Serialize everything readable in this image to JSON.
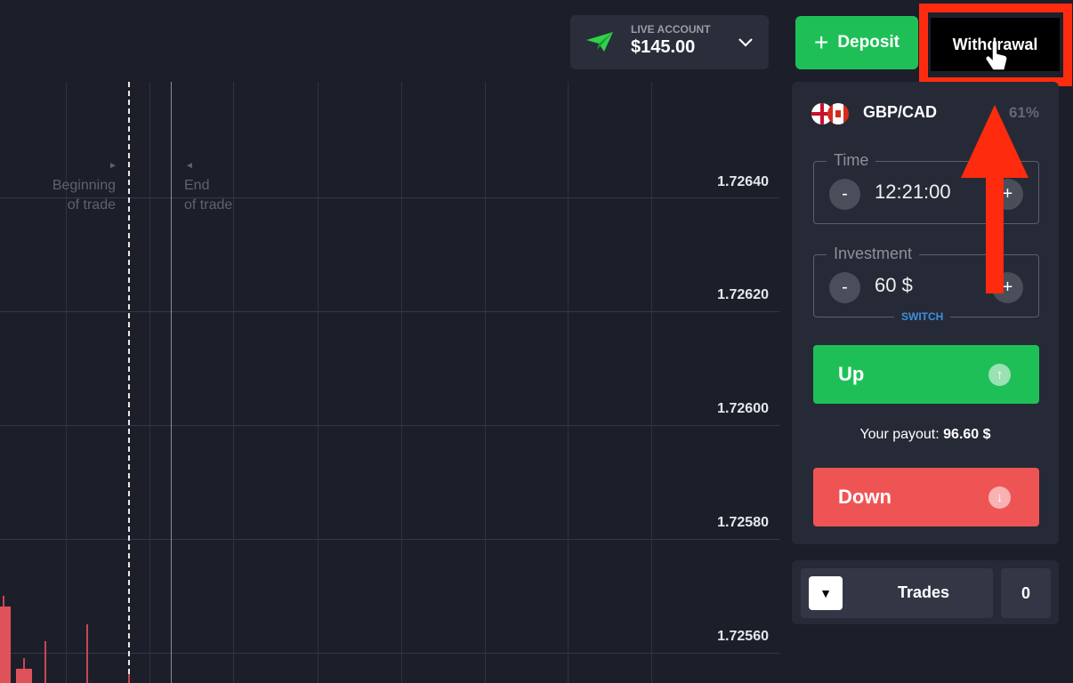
{
  "header": {
    "account_label": "LIVE ACCOUNT",
    "balance": "$145.00",
    "deposit_label": "Deposit",
    "withdrawal_label": "Withdrawal"
  },
  "chart": {
    "prices": [
      "1.72640",
      "1.72620",
      "1.72600",
      "1.72580",
      "1.72560"
    ],
    "beginning_label": [
      "Beginning",
      "of trade"
    ],
    "end_label": [
      "End",
      "of trade"
    ],
    "candle_color": "#e0525a"
  },
  "trade_panel": {
    "pair": "GBP/CAD",
    "payout_percent": "61%",
    "time_label": "Time",
    "time_value": "12:21:00",
    "investment_label": "Investment",
    "investment_value": "60 $",
    "switch_label": "SWITCH",
    "minus": "-",
    "plus": "+",
    "up_label": "Up",
    "down_label": "Down",
    "payout_label": "Your payout:",
    "payout_value": "96.60 $",
    "up_color": "#1fbf58",
    "down_color": "#ef5455"
  },
  "trades": {
    "label": "Trades",
    "count": "0"
  },
  "annotation": {
    "highlight_color": "#ff2b0e"
  }
}
